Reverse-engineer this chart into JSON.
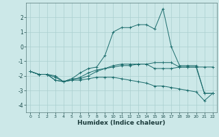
{
  "xlabel": "Humidex (Indice chaleur)",
  "background_color": "#cce8e8",
  "grid_color": "#aacfcf",
  "line_color": "#1a6b6b",
  "xlim": [
    -0.5,
    22.5
  ],
  "ylim": [
    -4.5,
    3.0
  ],
  "yticks": [
    -4,
    -3,
    -2,
    -1,
    0,
    1,
    2
  ],
  "xticks": [
    0,
    1,
    2,
    3,
    4,
    5,
    6,
    7,
    8,
    9,
    10,
    11,
    12,
    13,
    14,
    15,
    16,
    17,
    18,
    19,
    20,
    21,
    22
  ],
  "series": [
    [
      -1.7,
      -1.9,
      -1.9,
      -2.3,
      -2.4,
      -2.2,
      -1.8,
      -1.5,
      -1.4,
      -0.6,
      1.0,
      1.3,
      1.3,
      1.5,
      1.5,
      1.2,
      2.6,
      0.0,
      -1.3,
      -1.3,
      -1.3,
      -3.2,
      -3.2
    ],
    [
      -1.7,
      -1.9,
      -1.9,
      -2.1,
      -2.4,
      -2.2,
      -2.2,
      -2.0,
      -1.7,
      -1.5,
      -1.3,
      -1.2,
      -1.2,
      -1.2,
      -1.2,
      -1.5,
      -1.5,
      -1.5,
      -1.4,
      -1.4,
      -1.4,
      -1.4,
      -1.4
    ],
    [
      -1.7,
      -1.9,
      -1.9,
      -2.3,
      -2.4,
      -2.3,
      -2.3,
      -2.2,
      -2.1,
      -2.1,
      -2.1,
      -2.2,
      -2.3,
      -2.4,
      -2.5,
      -2.7,
      -2.7,
      -2.8,
      -2.9,
      -3.0,
      -3.1,
      -3.7,
      -3.2
    ],
    [
      -1.7,
      -1.9,
      -1.9,
      -2.0,
      -2.4,
      -2.3,
      -2.1,
      -1.8,
      -1.6,
      -1.5,
      -1.4,
      -1.3,
      -1.3,
      -1.2,
      -1.2,
      -1.1,
      -1.1,
      -1.1,
      -1.4,
      -1.4,
      -1.4,
      -3.2,
      -3.2
    ]
  ]
}
